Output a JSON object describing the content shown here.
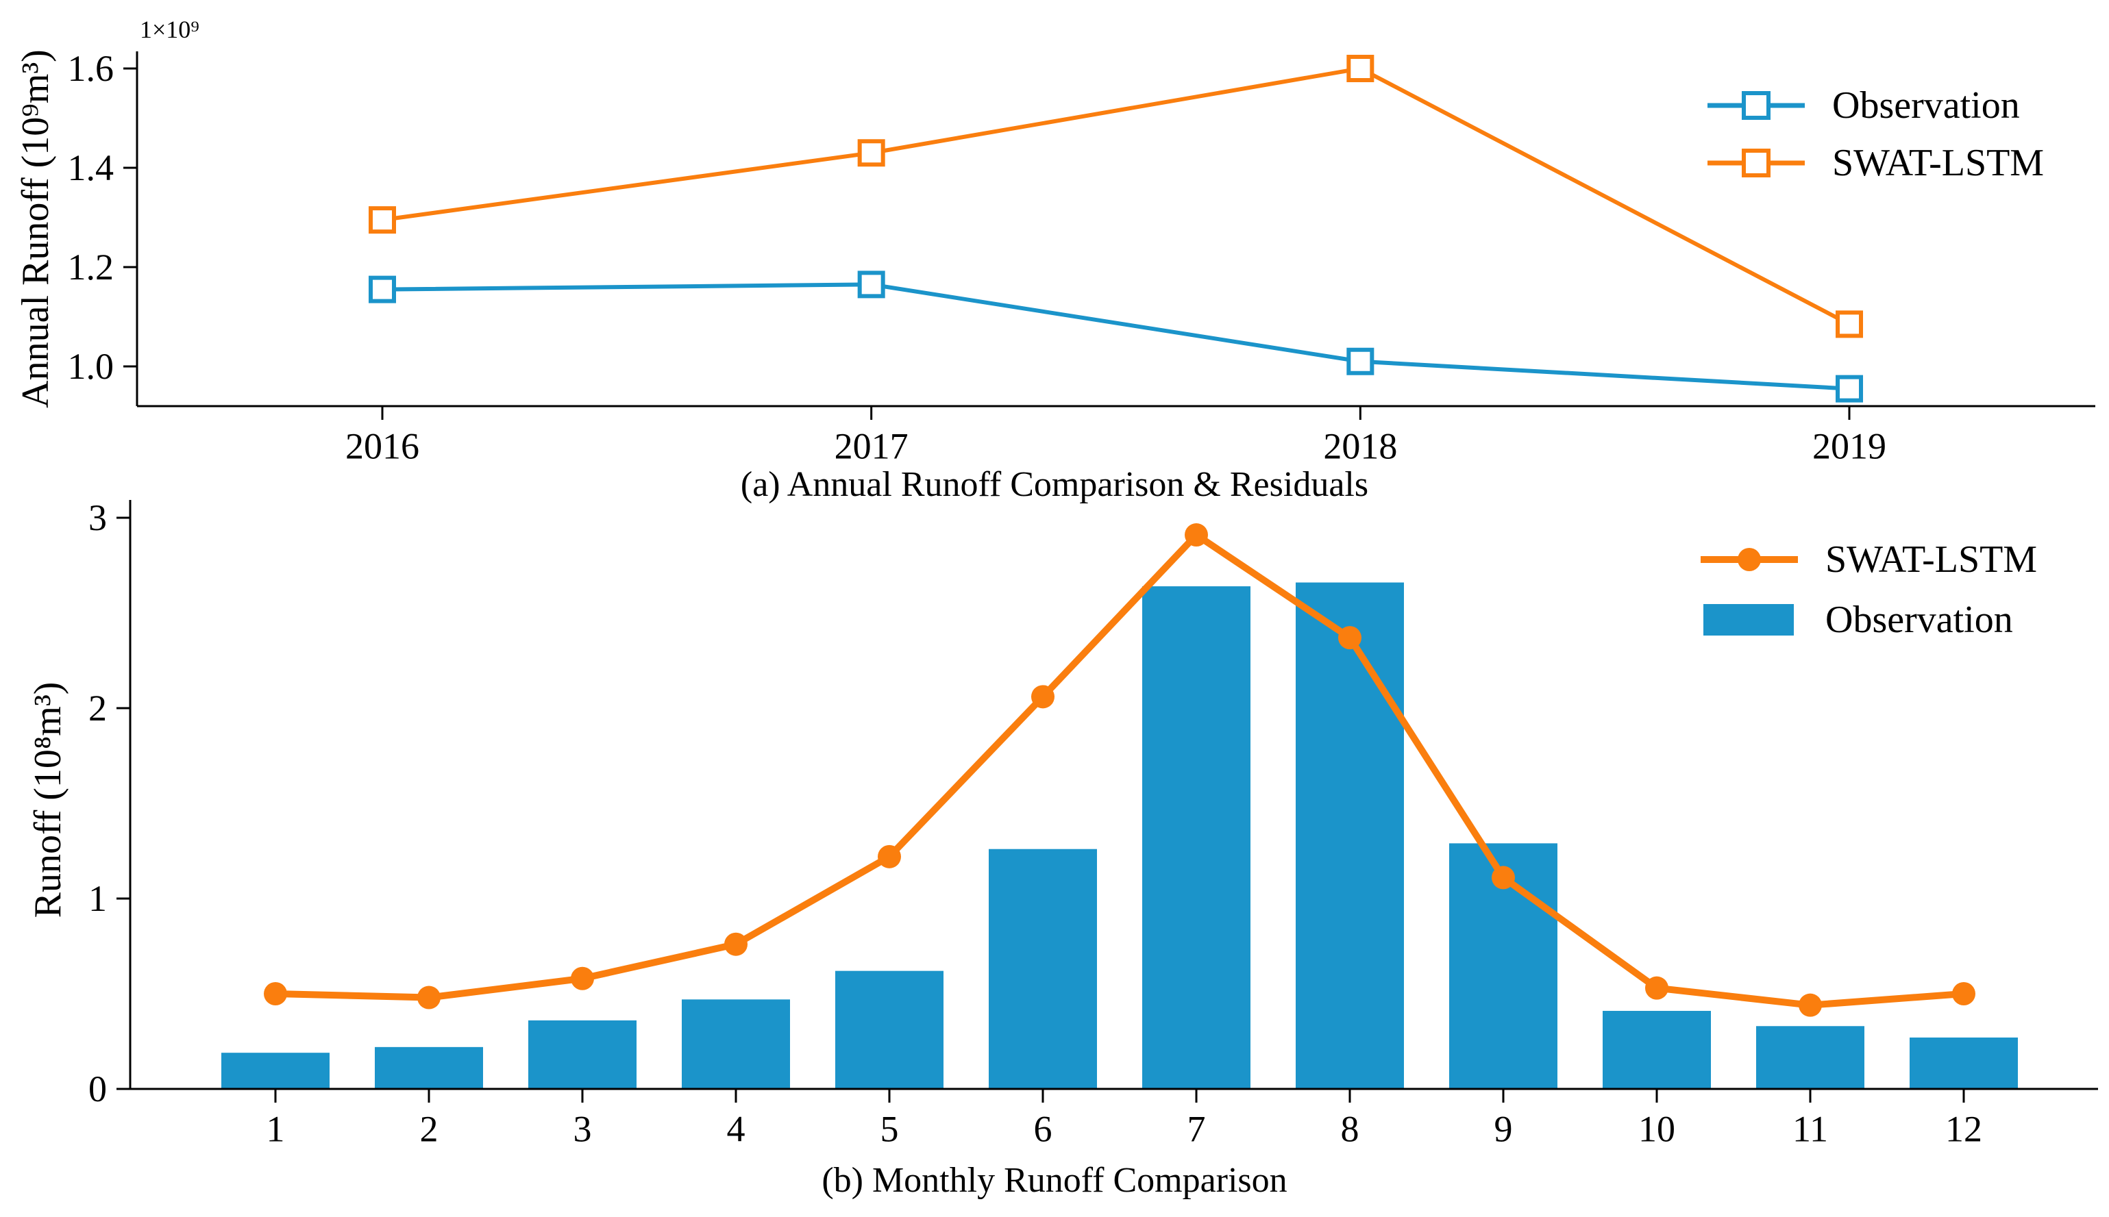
{
  "colors": {
    "observation_blue": "#1b94ca",
    "swat_orange": "#fa7e0e",
    "axis": "#000000",
    "text": "#000000",
    "background": "#ffffff",
    "marker_fill": "#ffffff"
  },
  "chart_data": [
    {
      "id": "annual",
      "type": "line",
      "title": "(a) Annual Runoff Comparison & Residuals",
      "ylabel": "Annual Runoff (10⁹m³)",
      "offset_text": "1×10⁹",
      "xlabel": "",
      "categories": [
        "2016",
        "2017",
        "2018",
        "2019"
      ],
      "y_ticks": [
        "1.0",
        "1.2",
        "1.4",
        "1.6"
      ],
      "y_tick_values": [
        1.0,
        1.2,
        1.4,
        1.6
      ],
      "ylim": [
        0.92,
        1.634
      ],
      "grid": false,
      "legend_position": "upper right",
      "series": [
        {
          "name": "Observation",
          "color_ref": "observation_blue",
          "marker": "open-square",
          "values": [
            1.155,
            1.165,
            1.01,
            0.955
          ]
        },
        {
          "name": "SWAT-LSTM",
          "color_ref": "swat_orange",
          "marker": "open-square",
          "values": [
            1.295,
            1.43,
            1.6,
            1.085
          ]
        }
      ]
    },
    {
      "id": "monthly",
      "type": "bar+line",
      "title": "(b) Monthly Runoff Comparison",
      "ylabel": "Runoff (10⁸m³)",
      "xlabel": "",
      "categories": [
        "1",
        "2",
        "3",
        "4",
        "5",
        "6",
        "7",
        "8",
        "9",
        "10",
        "11",
        "12"
      ],
      "y_ticks": [
        "0",
        "1",
        "2",
        "3"
      ],
      "y_tick_values": [
        0,
        1,
        2,
        3
      ],
      "ylim": [
        0,
        3.09
      ],
      "grid": false,
      "legend_position": "upper right",
      "series": [
        {
          "name": "SWAT-LSTM",
          "type": "line",
          "color_ref": "swat_orange",
          "marker": "filled-circle",
          "values": [
            0.5,
            0.48,
            0.58,
            0.76,
            1.22,
            2.06,
            2.91,
            2.37,
            1.11,
            0.53,
            0.44,
            0.5
          ]
        },
        {
          "name": "Observation",
          "type": "bar",
          "color_ref": "observation_blue",
          "values": [
            0.19,
            0.22,
            0.36,
            0.47,
            0.62,
            1.26,
            2.64,
            2.66,
            1.29,
            0.41,
            0.33,
            0.27
          ]
        }
      ]
    }
  ]
}
